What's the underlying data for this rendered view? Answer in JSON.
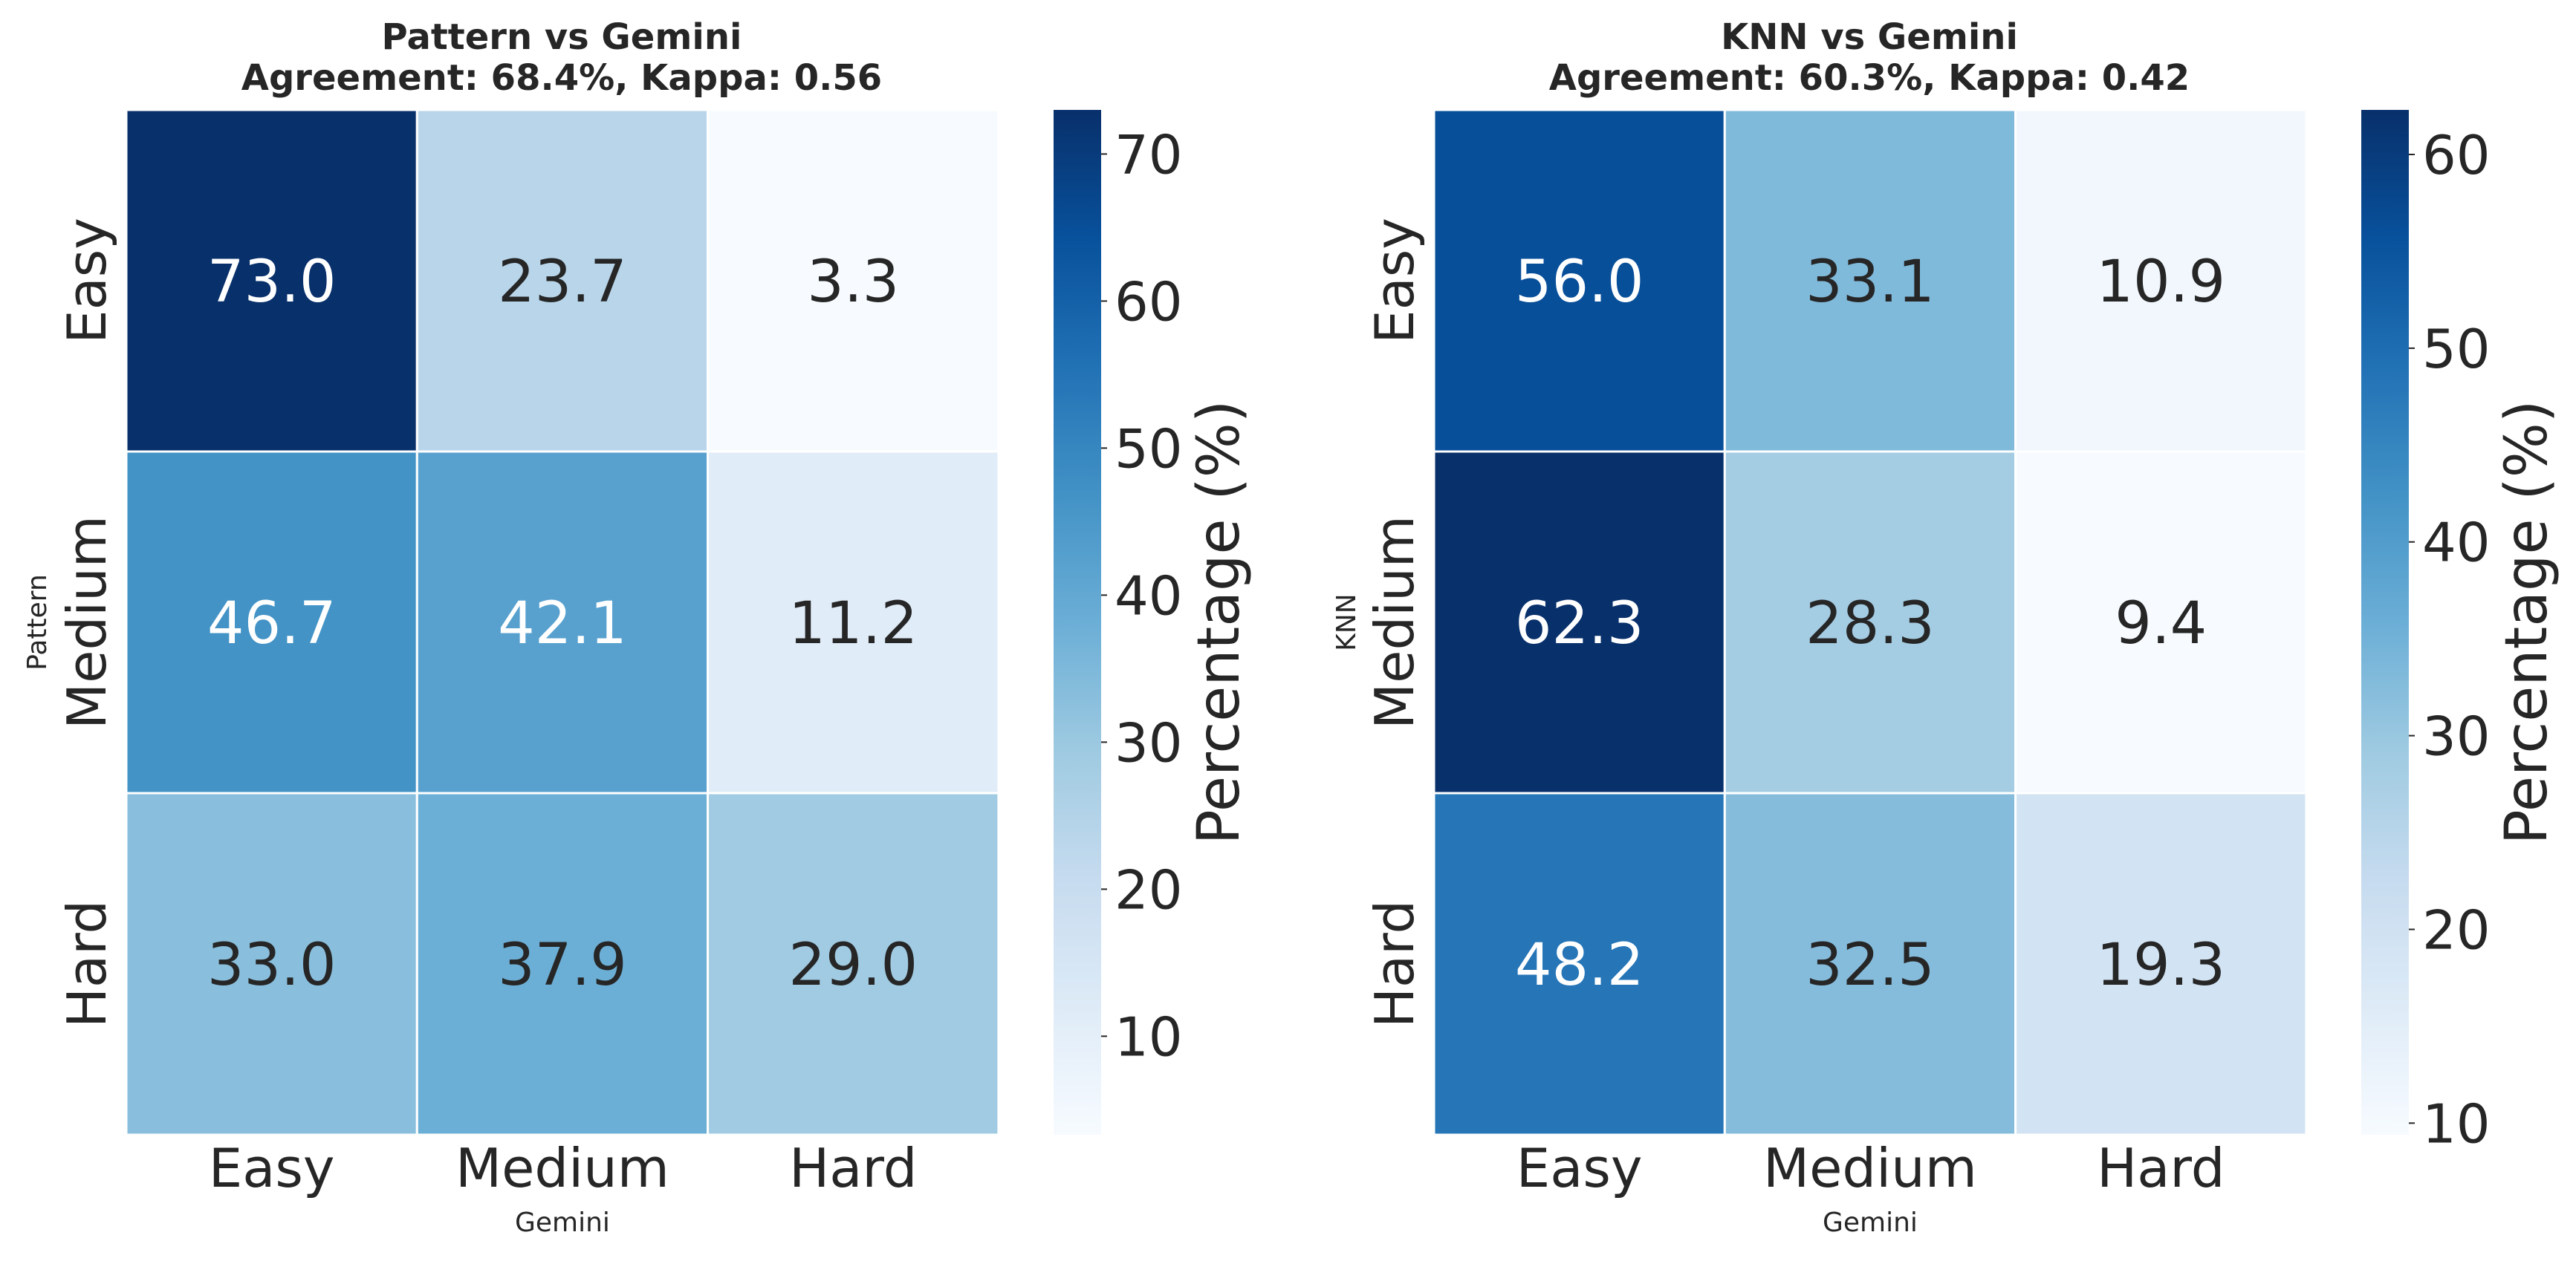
{
  "chart_data": [
    {
      "type": "heatmap",
      "title_line1": "Pattern vs Gemini",
      "title_line2": "Agreement: 68.4%, Kappa: 0.56",
      "xlabel": "Gemini",
      "ylabel": "Pattern",
      "x_categories": [
        "Easy",
        "Medium",
        "Hard"
      ],
      "y_categories": [
        "Easy",
        "Medium",
        "Hard"
      ],
      "values": [
        [
          73.0,
          23.7,
          3.3
        ],
        [
          46.7,
          42.1,
          11.2
        ],
        [
          33.0,
          37.9,
          29.0
        ]
      ],
      "value_labels": [
        [
          "73.0",
          "23.7",
          "3.3"
        ],
        [
          "46.7",
          "42.1",
          "11.2"
        ],
        [
          "33.0",
          "37.9",
          "29.0"
        ]
      ],
      "colormap": "Blues",
      "colorbar": {
        "label": "Percentage (%)",
        "vmin": 3.3,
        "vmax": 73.0,
        "ticks": [
          10,
          20,
          30,
          40,
          50,
          60,
          70
        ]
      }
    },
    {
      "type": "heatmap",
      "title_line1": "KNN vs Gemini",
      "title_line2": "Agreement: 60.3%, Kappa: 0.42",
      "xlabel": "Gemini",
      "ylabel": "KNN",
      "x_categories": [
        "Easy",
        "Medium",
        "Hard"
      ],
      "y_categories": [
        "Easy",
        "Medium",
        "Hard"
      ],
      "values": [
        [
          56.0,
          33.1,
          10.9
        ],
        [
          62.3,
          28.3,
          9.4
        ],
        [
          48.2,
          32.5,
          19.3
        ]
      ],
      "value_labels": [
        [
          "56.0",
          "33.1",
          "10.9"
        ],
        [
          "62.3",
          "28.3",
          "9.4"
        ],
        [
          "48.2",
          "32.5",
          "19.3"
        ]
      ],
      "colormap": "Blues",
      "colorbar": {
        "label": "Percentage (%)",
        "vmin": 9.4,
        "vmax": 62.3,
        "ticks": [
          10,
          20,
          30,
          40,
          50,
          60
        ]
      }
    }
  ]
}
